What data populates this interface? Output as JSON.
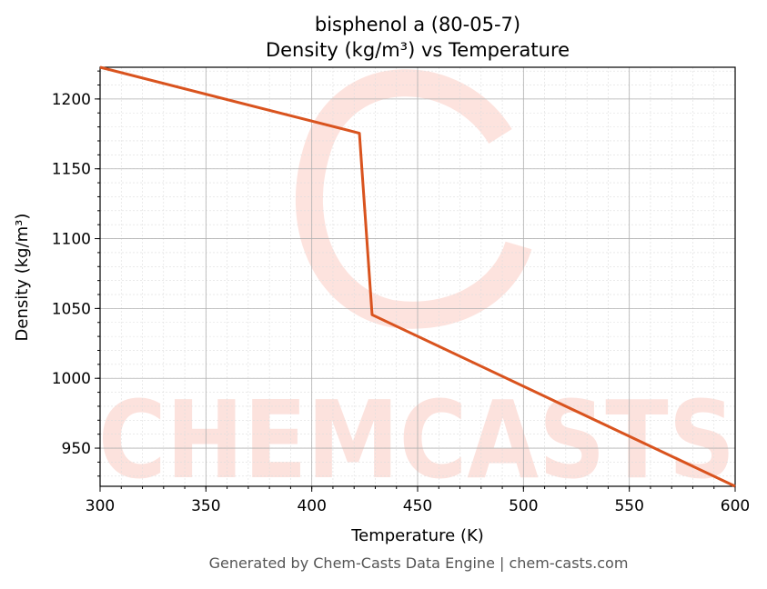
{
  "chart_data": {
    "type": "line",
    "title": "bisphenol a (80-05-7)",
    "subtitle": "Density (kg/m³) vs Temperature",
    "xlabel": "Temperature (K)",
    "ylabel": "Density (kg/m³)",
    "xlim": [
      300,
      600
    ],
    "ylim": [
      922.7,
      1222.7
    ],
    "xticks": [
      300,
      350,
      400,
      450,
      500,
      550,
      600
    ],
    "yticks": [
      950,
      1000,
      1050,
      1100,
      1150,
      1200
    ],
    "grid": true,
    "series": [
      {
        "name": "Density",
        "color": "#d9531e",
        "x": [
          300,
          422.5,
          428.5,
          600
        ],
        "y": [
          1222.7,
          1175.5,
          1045.5,
          922.7
        ]
      }
    ],
    "watermark": "CHEMCASTS",
    "footer": "Generated by Chem-Casts Data Engine | chem-casts.com"
  }
}
